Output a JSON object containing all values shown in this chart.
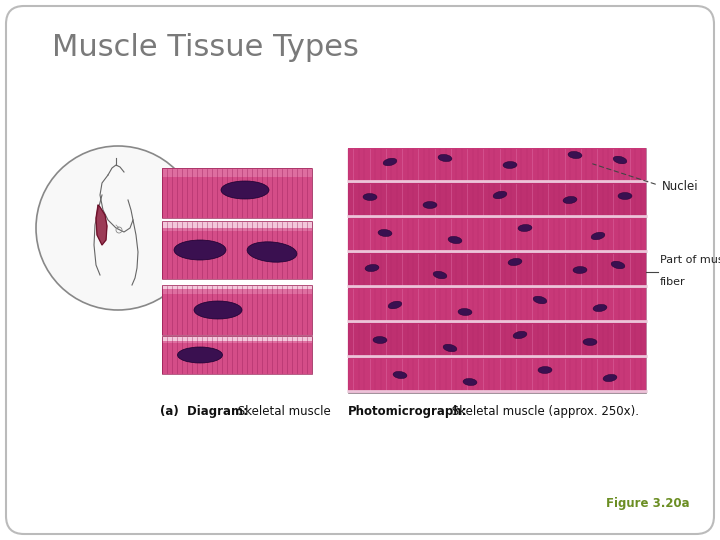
{
  "title": "Muscle Tissue Types",
  "title_color": "#7a7a7a",
  "title_fontsize": 22,
  "background_color": "#ffffff",
  "border_color": "#bbbbbb",
  "caption_left_bold": "(a)  Diagram:",
  "caption_left_normal": " Skeletal muscle",
  "caption_right_bold": "Photomicrograph:",
  "caption_right_normal": " Skeletal muscle (approx. 250x).",
  "label_nuclei": "Nuclei",
  "label_fiber_line1": "Part of muscle",
  "label_fiber_line2": "fiber",
  "figure_ref": "Figure 3.20a",
  "figure_ref_color": "#6b8e23",
  "muscle_pink_main": "#c8407a",
  "muscle_pink_mid": "#d44d88",
  "muscle_pink_light": "#e070a0",
  "muscle_stripe_dark": "#9a1f5a",
  "muscle_highlight": "#e890b8",
  "nucleus_color": "#3a1050",
  "nucleus_edge": "#1a0030",
  "diagram_bg": "#f0f0f0",
  "circle_edge": "#888888",
  "white": "#ffffff",
  "gap_color": "#f5f5f5",
  "photo_bg": "#d060a0",
  "photo_stripe_light": "#e888b8",
  "photo_stripe_dark": "#b83070",
  "photo_sep": "#f5d8e8",
  "label_color": "#222222"
}
